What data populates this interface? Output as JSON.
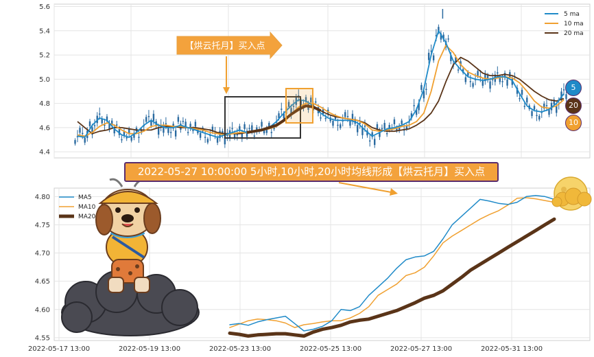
{
  "annotations": {
    "arrow_label": "【烘云托月】买入点",
    "banner": "2022-05-27 10:00:00 5小时,10小时,20小时均线形成【烘云托月】买入点"
  },
  "badges": {
    "ma5": "5",
    "ma20": "20",
    "ma10": "10"
  },
  "colors": {
    "ma5": "#1f8ac8",
    "ma10": "#f0a030",
    "ma20": "#5a3418",
    "candle": "#2a6aa0",
    "box_dark": "#333333",
    "box_orange": "#f0a030",
    "banner_bg": "#f3a23c",
    "banner_border": "#5a2d6e"
  },
  "chart_data": [
    {
      "type": "line",
      "subtype": "candlestick with moving averages",
      "ylim": [
        4.35,
        5.62
      ],
      "y_ticks": [
        "5.6",
        "5.4",
        "5.2",
        "5.0",
        "4.8",
        "4.6",
        "4.4"
      ],
      "y_tick_values": [
        5.6,
        5.4,
        5.2,
        5.0,
        4.8,
        4.6,
        4.4
      ],
      "grid": true,
      "legend_position": "top-right",
      "series": [
        {
          "name": "5 ma",
          "key": "ma5",
          "values": [
            4.53,
            4.52,
            4.62,
            4.68,
            4.66,
            4.59,
            4.54,
            4.52,
            4.56,
            4.62,
            4.66,
            4.62,
            4.6,
            4.6,
            4.62,
            4.6,
            4.58,
            4.56,
            4.54,
            4.52,
            4.54,
            4.56,
            4.58,
            4.56,
            4.57,
            4.58,
            4.6,
            4.65,
            4.72,
            4.78,
            4.83,
            4.82,
            4.78,
            4.72,
            4.68,
            4.66,
            4.66,
            4.66,
            4.64,
            4.58,
            4.53,
            4.56,
            4.59,
            4.6,
            4.62,
            4.65,
            4.75,
            4.92,
            5.2,
            5.4,
            5.3,
            5.15,
            5.08,
            5.02,
            5.0,
            4.99,
            5.0,
            5.02,
            5.02,
            4.99,
            4.88,
            4.78,
            4.74,
            4.73,
            4.75,
            4.8,
            4.88
          ]
        },
        {
          "name": "10 ma",
          "key": "ma10",
          "values": [
            4.54,
            4.53,
            4.56,
            4.61,
            4.64,
            4.62,
            4.58,
            4.55,
            4.55,
            4.57,
            4.61,
            4.62,
            4.62,
            4.61,
            4.61,
            4.6,
            4.59,
            4.58,
            4.56,
            4.55,
            4.54,
            4.55,
            4.56,
            4.56,
            4.57,
            4.58,
            4.59,
            4.61,
            4.65,
            4.71,
            4.77,
            4.8,
            4.8,
            4.77,
            4.73,
            4.7,
            4.68,
            4.67,
            4.66,
            4.63,
            4.58,
            4.57,
            4.58,
            4.59,
            4.61,
            4.62,
            4.65,
            4.72,
            4.9,
            5.15,
            5.28,
            5.22,
            5.12,
            5.06,
            5.03,
            5.01,
            5.0,
            5.01,
            5.02,
            5.01,
            4.97,
            4.9,
            4.82,
            4.77,
            4.76,
            4.78,
            4.83
          ]
        },
        {
          "name": "20 ma",
          "key": "ma20",
          "values": [
            4.65,
            4.6,
            4.55,
            4.57,
            4.58,
            4.6,
            4.6,
            4.59,
            4.58,
            4.58,
            4.58,
            4.6,
            4.61,
            4.61,
            4.6,
            4.6,
            4.6,
            4.59,
            4.58,
            4.56,
            4.55,
            4.55,
            4.55,
            4.56,
            4.57,
            4.58,
            4.6,
            4.62,
            4.66,
            4.71,
            4.75,
            4.78,
            4.77,
            4.74,
            4.71,
            4.69,
            4.68,
            4.67,
            4.66,
            4.64,
            4.6,
            4.58,
            4.57,
            4.57,
            4.58,
            4.59,
            4.62,
            4.66,
            4.72,
            4.82,
            4.98,
            5.12,
            5.18,
            5.15,
            5.1,
            5.05,
            5.03,
            5.03,
            5.04,
            5.03,
            5.0,
            4.95,
            4.9,
            4.86,
            4.83,
            4.82,
            4.84
          ]
        }
      ]
    },
    {
      "type": "line",
      "ylim": [
        4.545,
        4.815
      ],
      "y_ticks": [
        "4.80",
        "4.75",
        "4.70",
        "4.65",
        "4.60",
        "4.55"
      ],
      "y_tick_values": [
        4.8,
        4.75,
        4.7,
        4.65,
        4.6,
        4.55
      ],
      "x_ticks": [
        "2022-05-17 13:00",
        "2022-05-19 13:00",
        "2022-05-23 13:00",
        "2022-05-25 13:00",
        "2022-05-27 13:00",
        "2022-05-31 13:00"
      ],
      "grid": true,
      "legend_position": "top-left",
      "series": [
        {
          "name": "MA5",
          "key": "ma5",
          "values": [
            4.573,
            4.575,
            4.572,
            4.578,
            4.582,
            4.585,
            4.588,
            4.575,
            4.562,
            4.565,
            4.57,
            4.58,
            4.6,
            4.598,
            4.605,
            4.625,
            4.64,
            4.655,
            4.673,
            4.688,
            4.693,
            4.695,
            4.703,
            4.725,
            4.75,
            4.765,
            4.78,
            4.795,
            4.792,
            4.788,
            4.786,
            4.79,
            4.8,
            4.802,
            4.8,
            4.795
          ]
        },
        {
          "name": "MA10",
          "key": "ma10",
          "values": [
            4.568,
            4.574,
            4.58,
            4.583,
            4.582,
            4.58,
            4.576,
            4.568,
            4.573,
            4.575,
            4.578,
            4.58,
            4.58,
            4.585,
            4.593,
            4.605,
            4.625,
            4.635,
            4.645,
            4.66,
            4.665,
            4.675,
            4.695,
            4.718,
            4.73,
            4.74,
            4.75,
            4.76,
            4.768,
            4.775,
            4.785,
            4.797,
            4.798,
            4.796,
            4.793,
            4.79
          ]
        },
        {
          "name": "MA20",
          "key": "ma20",
          "values": [
            4.558,
            4.556,
            4.553,
            4.555,
            4.556,
            4.557,
            4.557,
            4.555,
            4.553,
            4.56,
            4.565,
            4.568,
            4.572,
            4.578,
            4.581,
            4.583,
            4.588,
            4.593,
            4.598,
            4.605,
            4.612,
            4.62,
            4.625,
            4.633,
            4.645,
            4.657,
            4.67,
            4.68,
            4.69,
            4.7,
            4.71,
            4.72,
            4.73,
            4.74,
            4.75,
            4.76
          ]
        }
      ]
    }
  ]
}
